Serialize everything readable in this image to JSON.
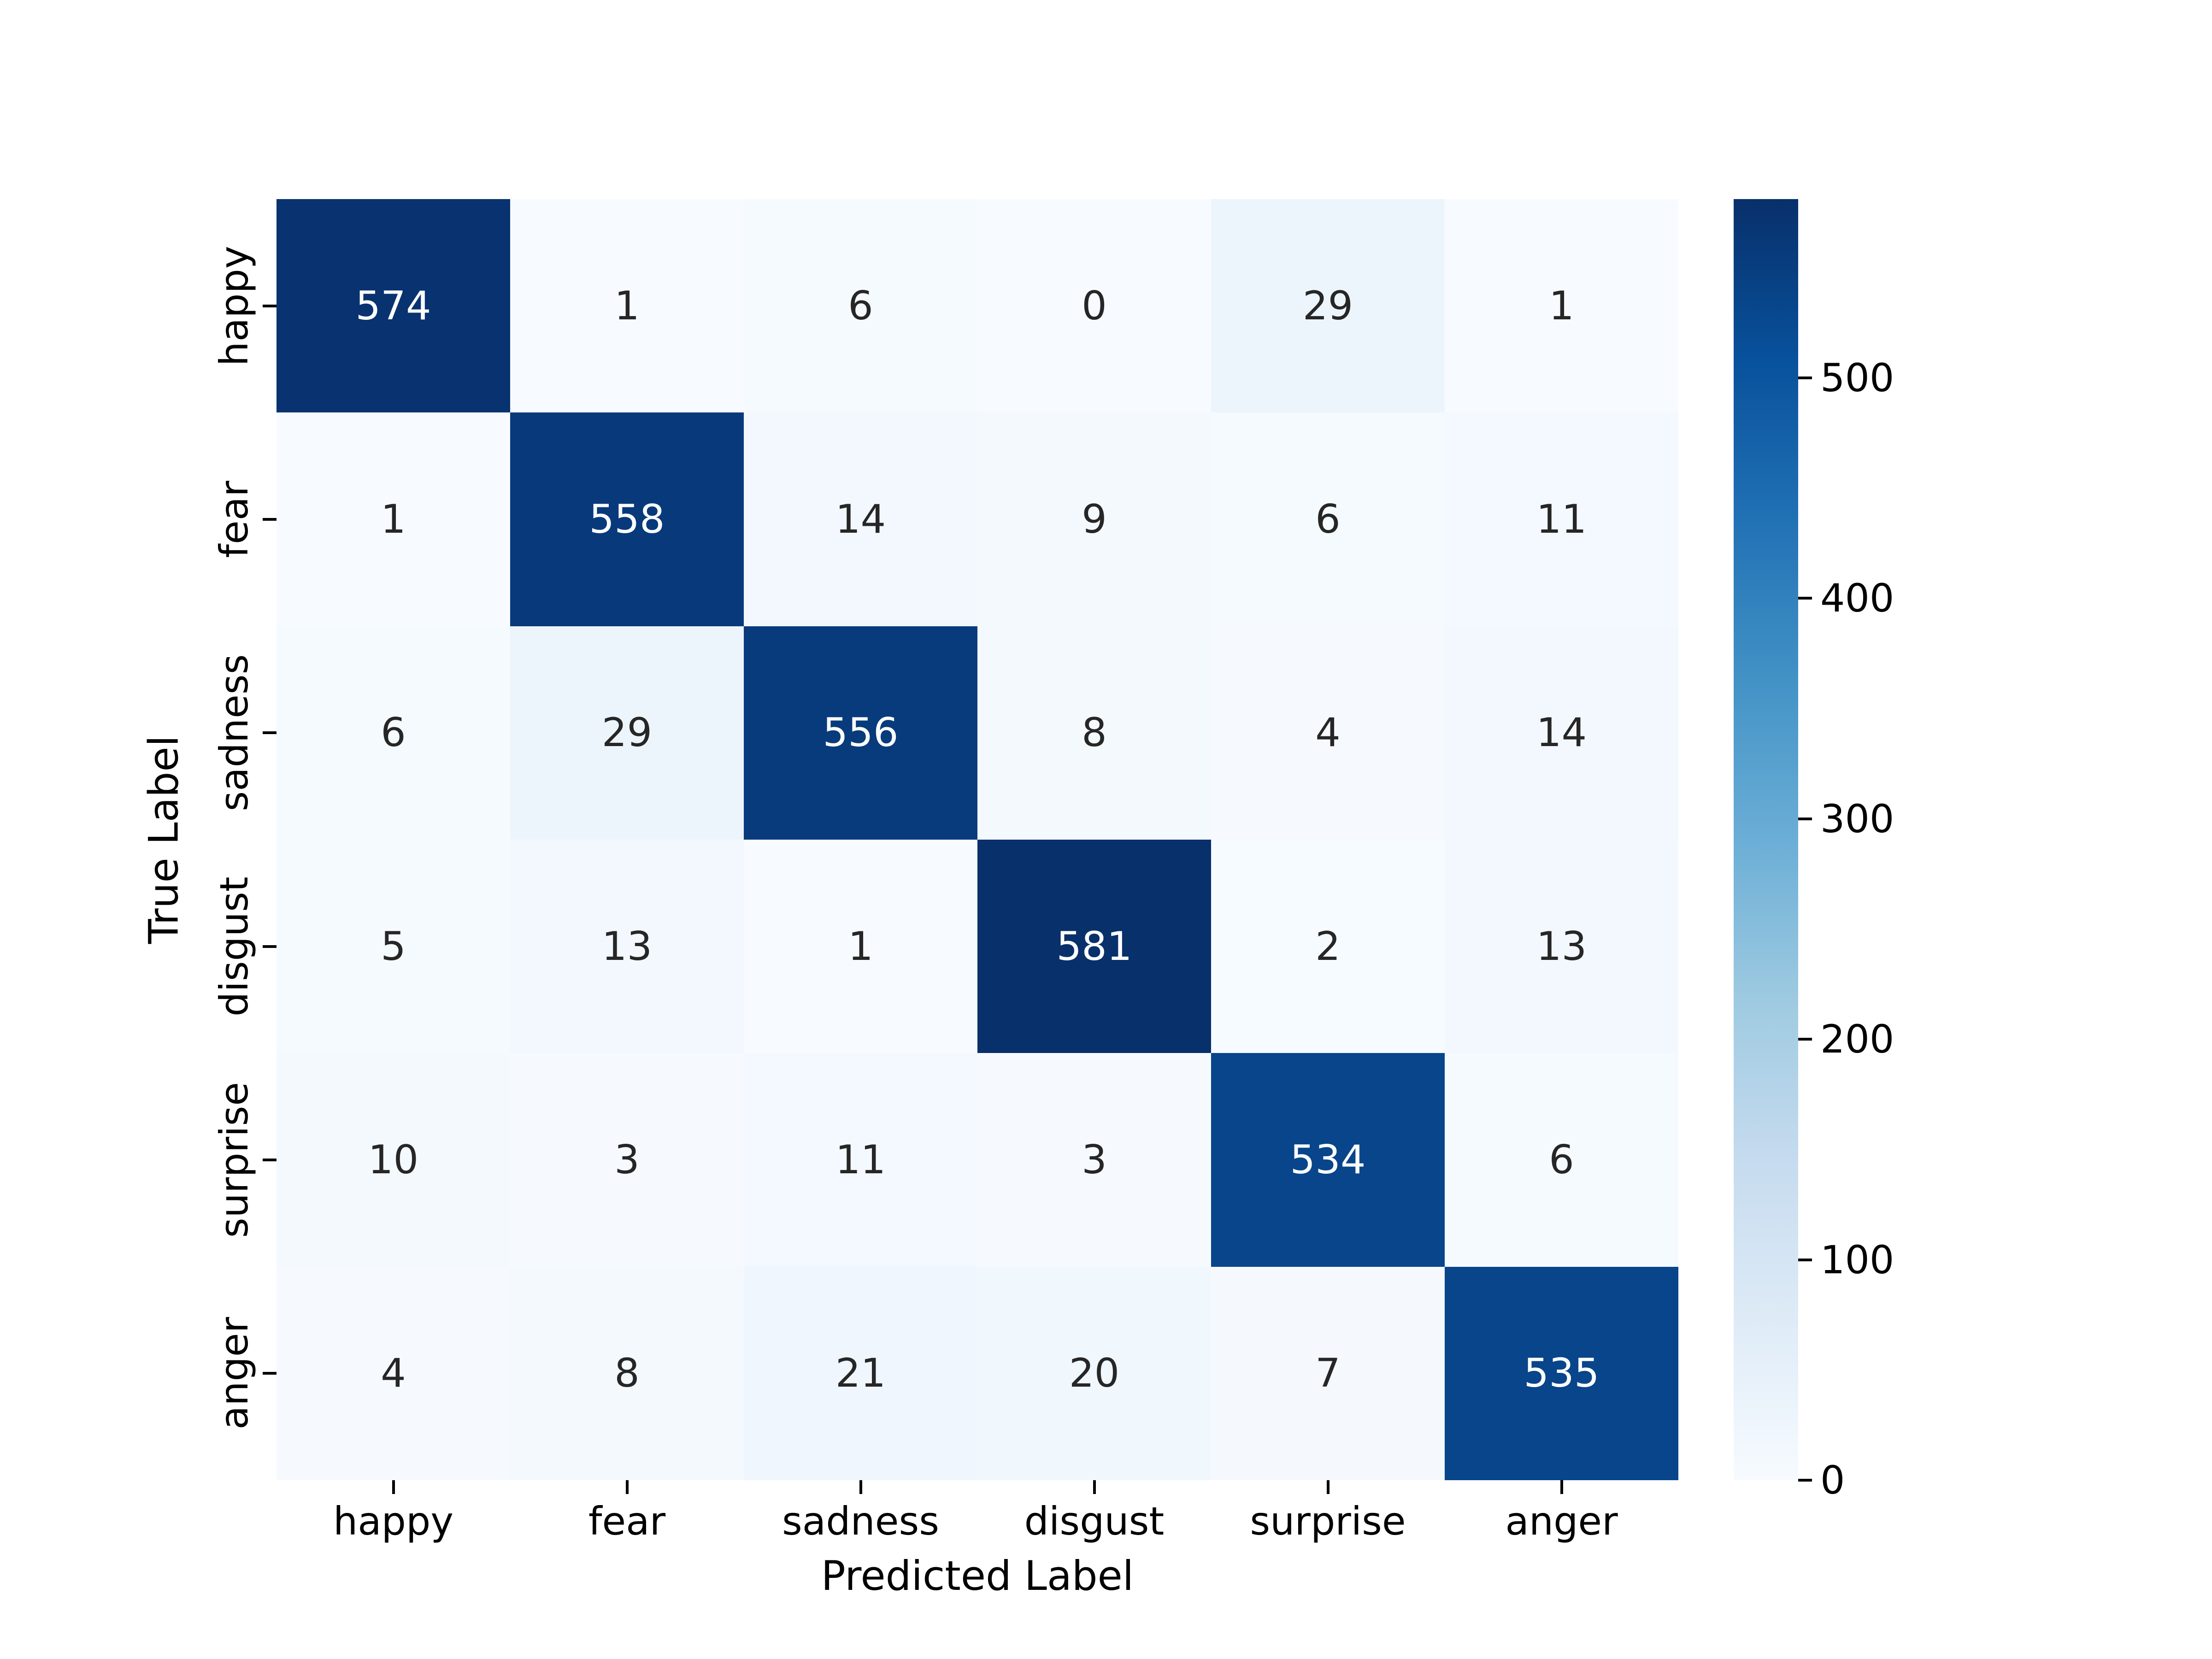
{
  "figure": {
    "background": "#ffffff"
  },
  "chart_data": {
    "type": "heatmap",
    "title": "",
    "xlabel": "Predicted Label",
    "ylabel": "True Label",
    "x_tick_labels": [
      "happy",
      "fear",
      "sadness",
      "disgust",
      "surprise",
      "anger"
    ],
    "y_tick_labels": [
      "happy",
      "fear",
      "sadness",
      "disgust",
      "surprise",
      "anger"
    ],
    "matrix": [
      [
        574,
        1,
        6,
        0,
        29,
        1
      ],
      [
        1,
        558,
        14,
        9,
        6,
        11
      ],
      [
        6,
        29,
        556,
        8,
        4,
        14
      ],
      [
        5,
        13,
        1,
        581,
        2,
        13
      ],
      [
        10,
        3,
        11,
        3,
        534,
        6
      ],
      [
        4,
        8,
        21,
        20,
        7,
        535
      ]
    ],
    "vmin": 0,
    "vmax": 581,
    "colormap": "Blues",
    "colormap_stops": [
      "#f7fbff",
      "#deebf7",
      "#c6dbef",
      "#9ecae1",
      "#6baed6",
      "#4292c6",
      "#2171b5",
      "#08519c",
      "#08306b"
    ],
    "colorbar_ticks": [
      0,
      100,
      200,
      300,
      400,
      500
    ],
    "annotation_colors": {
      "light_text": "#ffffff",
      "dark_text": "#262626"
    },
    "grid": false,
    "legend_position": "right-colorbar"
  }
}
